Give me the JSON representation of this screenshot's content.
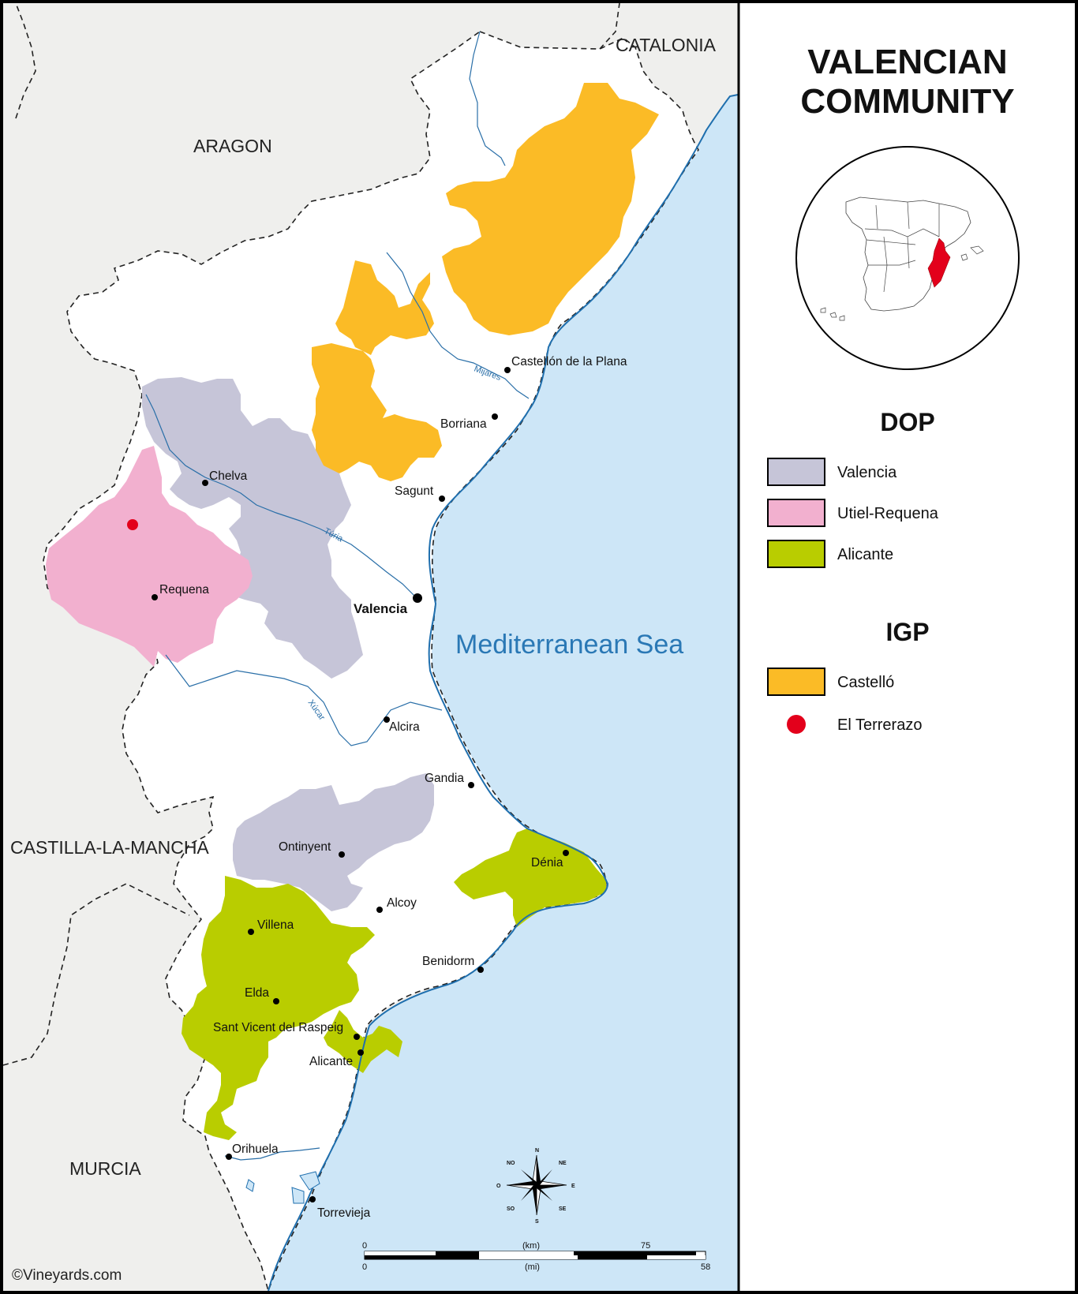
{
  "title": {
    "line1": "VALENCIAN",
    "line2": "COMMUNITY"
  },
  "neighbor_regions": {
    "catalonia": "CATALONIA",
    "aragon": "ARAGON",
    "castilla": "CASTILLA-LA-MANCHA",
    "murcia": "MURCIA"
  },
  "sea": "Mediterranean Sea",
  "rivers": {
    "mijares": "Mijares",
    "turia": "Túria",
    "xucar": "Xúcar"
  },
  "cities": {
    "castellon": "Castellón de la Plana",
    "borriana": "Borriana",
    "sagunt": "Sagunt",
    "chelva": "Chelva",
    "requena": "Requena",
    "valencia": "Valencia",
    "alcira": "Alcira",
    "gandia": "Gandia",
    "ontinyent": "Ontinyent",
    "denia": "Dénia",
    "alcoy": "Alcoy",
    "villena": "Villena",
    "benidorm": "Benidorm",
    "elda": "Elda",
    "sant_vicent": "Sant Vicent del Raspeig",
    "alicante": "Alicante",
    "orihuela": "Orihuela",
    "torrevieja": "Torrevieja"
  },
  "legend": {
    "dop_heading": "DOP",
    "dop_items": [
      {
        "label": "Valencia",
        "color": "#c6c5d8"
      },
      {
        "label": "Utiel-Requena",
        "color": "#f2b0cf"
      },
      {
        "label": "Alicante",
        "color": "#b9cd00"
      }
    ],
    "igp_heading": "IGP",
    "igp_items": [
      {
        "label": "Castelló",
        "color": "#fbbb26"
      }
    ],
    "point_items": [
      {
        "label": "El Terrerazo",
        "color": "#e3001b"
      }
    ]
  },
  "colors": {
    "sea": "#cde6f7",
    "neighbor_land": "#efefed",
    "coast_line": "#1f6fae",
    "highlight_red": "#e3001b"
  },
  "compass": {
    "n": "N",
    "s": "S",
    "e": "E",
    "o": "O",
    "ne": "NE",
    "no": "NO",
    "se": "SE",
    "so": "SO"
  },
  "scale": {
    "km_unit": "(km)",
    "mi_unit": "(mi)",
    "km_zero": "0",
    "km_max": "75",
    "mi_zero": "0",
    "mi_max": "58"
  },
  "credit": "©Vineyards.com"
}
